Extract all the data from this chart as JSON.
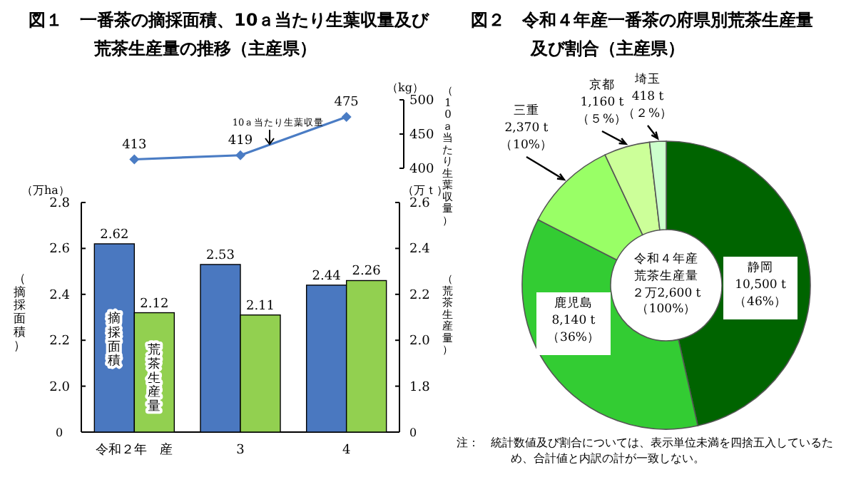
{
  "chart_data": [
    {
      "type": "line",
      "title": "図１　一番茶の摘採面積、10ａ当たり生葉収量及び荒茶生産量の推移（主産県）",
      "ylabel": "（10ａ当たり生葉収量）",
      "categories": [
        null,
        null,
        null
      ],
      "tick_labels": "y",
      "ylim": [
        400,
        500
      ],
      "yticks": [
        400,
        450,
        500
      ],
      "marker": "diamond",
      "data_labels": true,
      "annotations": [
        "（kg）"
      ],
      "series": [
        {
          "name": "10ａ当たり生葉収量",
          "color": "#4a7cc4",
          "values": [
            413,
            419,
            475
          ]
        }
      ]
    },
    {
      "type": "bar",
      "ylabel": "（摘採面積）",
      "y2label": "（荒茶生産量）",
      "categories": [
        "令和２年　産",
        "3",
        "4"
      ],
      "data_labels": true,
      "annotations": [
        "（万ha）",
        "（万ｔ）",
        "0",
        "0"
      ],
      "ylim": [
        1.8,
        2.8
      ],
      "yticks": [
        {
          "value": 1.8,
          "label": null
        },
        {
          "value": 2,
          "label": "2.0"
        },
        2.2,
        2.4,
        2.6,
        2.8
      ],
      "y2lim": [
        1.6,
        2.6
      ],
      "y2ticks": [
        {
          "value": 1.6,
          "label": null
        },
        1.8,
        {
          "value": 2,
          "label": "2.0"
        },
        2.2,
        2.4,
        2.6
      ],
      "series": [
        {
          "name": "摘採面積",
          "color": "#4a78c0",
          "values": [
            2.62,
            2.53,
            2.44
          ]
        },
        {
          "name": "荒茶生産量",
          "color": "#92d050",
          "axis": "y2",
          "values": [
            2.12,
            2.11,
            2.26
          ]
        }
      ]
    },
    {
      "type": "donut",
      "title": "図２　令和４年産一番茶の府県別荒茶生産量及び割合（主産県）",
      "categories": [
        "静岡",
        "鹿児島",
        "三重",
        "京都",
        "埼玉"
      ],
      "values": [
        10500,
        8140,
        2370,
        1160,
        418
      ],
      "colors": [
        "#006400",
        "#33cc33",
        "#99ff66",
        "#ccff99",
        "#ccffcc"
      ],
      "value_labels": [
        "10,500 t（46%）",
        "8,140 t（36%）",
        "2,370 t（10%）",
        "1,160 t（５%）",
        "418 t（２%）"
      ],
      "annotations": [
        "令和４年産",
        "荒茶生産量",
        "２万2,600 t（100%）",
        "注：　統計数値及び割合については、表示単位未満を四捨五入しているため、合計値と内訳の計が一致しない。"
      ]
    }
  ]
}
